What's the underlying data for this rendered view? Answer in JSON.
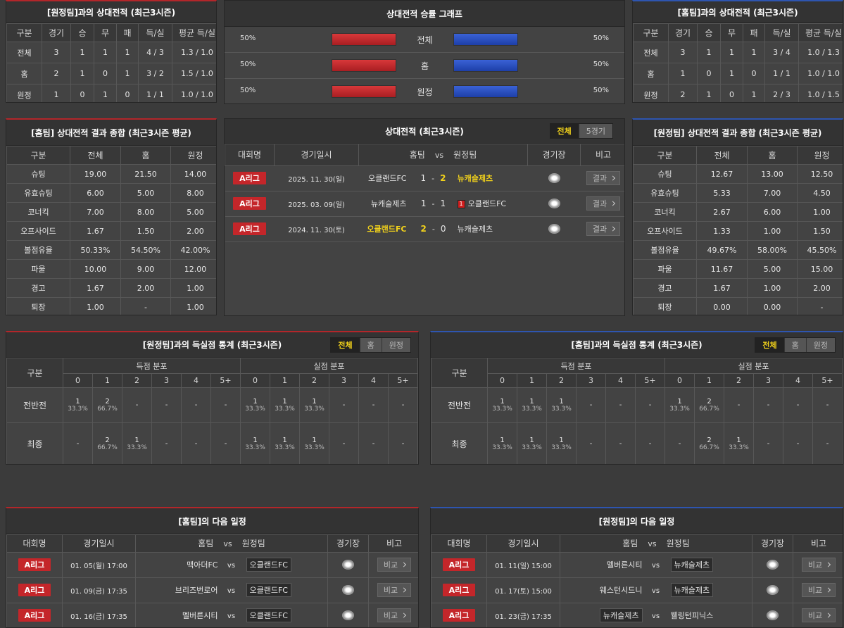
{
  "h2h_left": {
    "title": "[원정팀]과의 상대전적 (최근3시즌)",
    "headers": [
      "구분",
      "경기",
      "승",
      "무",
      "패",
      "득/실",
      "평균 득/실"
    ],
    "rows": [
      [
        "전체",
        "3",
        "1",
        "1",
        "1",
        "4 / 3",
        "1.3 / 1.0"
      ],
      [
        "홈",
        "2",
        "1",
        "0",
        "1",
        "3 / 2",
        "1.5 / 1.0"
      ],
      [
        "원정",
        "1",
        "0",
        "1",
        "0",
        "1 / 1",
        "1.0 / 1.0"
      ]
    ]
  },
  "win_graph": {
    "title": "상대전적 승률 그래프",
    "rows": [
      {
        "label": "전체",
        "home": {
          "value": 50,
          "label": "50%"
        },
        "away": {
          "value": 50,
          "label": "50%"
        }
      },
      {
        "label": "홈",
        "home": {
          "value": 50,
          "label": "50%"
        },
        "away": {
          "value": 50,
          "label": "50%"
        }
      },
      {
        "label": "원정",
        "home": {
          "value": 50,
          "label": "50%"
        },
        "away": {
          "value": 50,
          "label": "50%"
        }
      }
    ]
  },
  "h2h_right": {
    "title": "[홈팀]과의 상대전적 (최근3시즌)",
    "headers": [
      "구분",
      "경기",
      "승",
      "무",
      "패",
      "득/실",
      "평균 득/실"
    ],
    "rows": [
      [
        "전체",
        "3",
        "1",
        "1",
        "1",
        "3 / 4",
        "1.0 / 1.3"
      ],
      [
        "홈",
        "1",
        "0",
        "1",
        "0",
        "1 / 1",
        "1.0 / 1.0"
      ],
      [
        "원정",
        "2",
        "1",
        "0",
        "1",
        "2 / 3",
        "1.0 / 1.5"
      ]
    ]
  },
  "summary_left": {
    "title": "[홈팀] 상대전적 결과 종합 (최근3시즌 평균)",
    "headers": [
      "구분",
      "전체",
      "홈",
      "원정"
    ],
    "rows": [
      [
        "슈팅",
        "19.00",
        "21.50",
        "14.00"
      ],
      [
        "유효슈팅",
        "6.00",
        "5.00",
        "8.00"
      ],
      [
        "코너킥",
        "7.00",
        "8.00",
        "5.00"
      ],
      [
        "오프사이드",
        "1.67",
        "1.50",
        "2.00"
      ],
      [
        "볼점유율",
        "50.33%",
        "54.50%",
        "42.00%"
      ],
      [
        "파울",
        "10.00",
        "9.00",
        "12.00"
      ],
      [
        "경고",
        "1.67",
        "2.00",
        "1.00"
      ],
      [
        "퇴장",
        "1.00",
        "-",
        "1.00"
      ]
    ]
  },
  "recent": {
    "title": "상대전적 (최근3시즌)",
    "tabs": [
      "전체",
      "5경기"
    ],
    "active_tab": 0,
    "headers": {
      "league": "대회명",
      "date": "경기일시",
      "home": "홈팀",
      "vs": "vs",
      "away": "원정팀",
      "stadium": "경기장",
      "note": "비고"
    },
    "rows": [
      {
        "league": "A리그",
        "date": "2025. 11. 30(일)",
        "home": "오클랜드FC",
        "home_score": "1",
        "sep": "-",
        "away_score": "2",
        "away": "뉴캐슬제츠",
        "winner": "away",
        "button": "결과"
      },
      {
        "league": "A리그",
        "date": "2025. 03. 09(일)",
        "home": "뉴캐슬제츠",
        "home_score": "1",
        "sep": "-",
        "away_score": "1",
        "away": "오클랜드FC",
        "red_card": "1",
        "winner": "none",
        "button": "결과"
      },
      {
        "league": "A리그",
        "date": "2024. 11. 30(토)",
        "home": "오클랜드FC",
        "home_score": "2",
        "sep": "-",
        "away_score": "0",
        "away": "뉴캐슬제츠",
        "winner": "home",
        "button": "결과"
      }
    ]
  },
  "summary_right": {
    "title": "[원정팀] 상대전적 결과 종합 (최근3시즌 평균)",
    "headers": [
      "구분",
      "전체",
      "홈",
      "원정"
    ],
    "rows": [
      [
        "슈팅",
        "12.67",
        "13.00",
        "12.50"
      ],
      [
        "유효슈팅",
        "5.33",
        "7.00",
        "4.50"
      ],
      [
        "코너킥",
        "2.67",
        "6.00",
        "1.00"
      ],
      [
        "오프사이드",
        "1.33",
        "1.00",
        "1.50"
      ],
      [
        "볼점유율",
        "49.67%",
        "58.00%",
        "45.50%"
      ],
      [
        "파울",
        "11.67",
        "5.00",
        "15.00"
      ],
      [
        "경고",
        "1.67",
        "1.00",
        "2.00"
      ],
      [
        "퇴장",
        "0.00",
        "0.00",
        "-"
      ]
    ]
  },
  "goals_left": {
    "title": "[원정팀]과의 득실점 통계 (최근3시즌)",
    "tabs": [
      "전체",
      "홈",
      "원정"
    ],
    "active_tab": 0,
    "label": "구분",
    "groups": [
      "득점 분포",
      "실점 분포"
    ],
    "columns": [
      "0",
      "1",
      "2",
      "3",
      "4",
      "5+"
    ],
    "rows": [
      {
        "label": "전반전",
        "scored": [
          {
            "count": "1",
            "pct": "33.3%"
          },
          {
            "count": "2",
            "pct": "66.7%"
          },
          "-",
          "-",
          "-",
          "-"
        ],
        "conceded": [
          {
            "count": "1",
            "pct": "33.3%"
          },
          {
            "count": "1",
            "pct": "33.3%"
          },
          {
            "count": "1",
            "pct": "33.3%"
          },
          "-",
          "-",
          "-"
        ]
      },
      {
        "label": "최종",
        "scored": [
          "-",
          {
            "count": "2",
            "pct": "66.7%"
          },
          {
            "count": "1",
            "pct": "33.3%"
          },
          "-",
          "-",
          "-"
        ],
        "conceded": [
          {
            "count": "1",
            "pct": "33.3%"
          },
          {
            "count": "1",
            "pct": "33.3%"
          },
          {
            "count": "1",
            "pct": "33.3%"
          },
          "-",
          "-",
          "-"
        ]
      }
    ]
  },
  "goals_right": {
    "title": "[홈팀]과의 득실점 통계 (최근3시즌)",
    "tabs": [
      "전체",
      "홈",
      "원정"
    ],
    "active_tab": 0,
    "label": "구분",
    "groups": [
      "득점 분포",
      "실점 분포"
    ],
    "columns": [
      "0",
      "1",
      "2",
      "3",
      "4",
      "5+"
    ],
    "rows": [
      {
        "label": "전반전",
        "scored": [
          {
            "count": "1",
            "pct": "33.3%"
          },
          {
            "count": "1",
            "pct": "33.3%"
          },
          {
            "count": "1",
            "pct": "33.3%"
          },
          "-",
          "-",
          "-"
        ],
        "conceded": [
          {
            "count": "1",
            "pct": "33.3%"
          },
          {
            "count": "2",
            "pct": "66.7%"
          },
          "-",
          "-",
          "-",
          "-"
        ]
      },
      {
        "label": "최종",
        "scored": [
          {
            "count": "1",
            "pct": "33.3%"
          },
          {
            "count": "1",
            "pct": "33.3%"
          },
          {
            "count": "1",
            "pct": "33.3%"
          },
          "-",
          "-",
          "-"
        ],
        "conceded": [
          "-",
          {
            "count": "2",
            "pct": "66.7%"
          },
          {
            "count": "1",
            "pct": "33.3%"
          },
          "-",
          "-",
          "-"
        ]
      }
    ]
  },
  "schedule_left": {
    "title": "[홈팀]의 다음 일정",
    "headers": {
      "league": "대회명",
      "date": "경기일시",
      "home": "홈팀",
      "vs": "vs",
      "away": "원정팀",
      "stadium": "경기장",
      "note": "비고"
    },
    "rows": [
      {
        "league": "A리그",
        "date": "01. 05(월) 17:00",
        "home": "맥아더FC",
        "vs": "vs",
        "away": "오클랜드FC",
        "focus": "away",
        "button": "비교"
      },
      {
        "league": "A리그",
        "date": "01. 09(금) 17:35",
        "home": "브리즈번로어",
        "vs": "vs",
        "away": "오클랜드FC",
        "focus": "away",
        "button": "비교"
      },
      {
        "league": "A리그",
        "date": "01. 16(금) 17:35",
        "home": "멜버른시티",
        "vs": "vs",
        "away": "오클랜드FC",
        "focus": "away",
        "button": "비교"
      }
    ]
  },
  "schedule_right": {
    "title": "[원정팀]의 다음 일정",
    "headers": {
      "league": "대회명",
      "date": "경기일시",
      "home": "홈팀",
      "vs": "vs",
      "away": "원정팀",
      "stadium": "경기장",
      "note": "비고"
    },
    "rows": [
      {
        "league": "A리그",
        "date": "01. 11(일) 15:00",
        "home": "멜버른시티",
        "vs": "vs",
        "away": "뉴캐슬제츠",
        "focus": "away",
        "button": "비교"
      },
      {
        "league": "A리그",
        "date": "01. 17(토) 15:00",
        "home": "웨스턴시드니",
        "vs": "vs",
        "away": "뉴캐슬제츠",
        "focus": "away",
        "button": "비교"
      },
      {
        "league": "A리그",
        "date": "01. 23(금) 17:35",
        "home": "뉴캐슬제츠",
        "vs": "vs",
        "away": "웰링턴피닉스",
        "focus": "home",
        "button": "비교"
      }
    ]
  }
}
